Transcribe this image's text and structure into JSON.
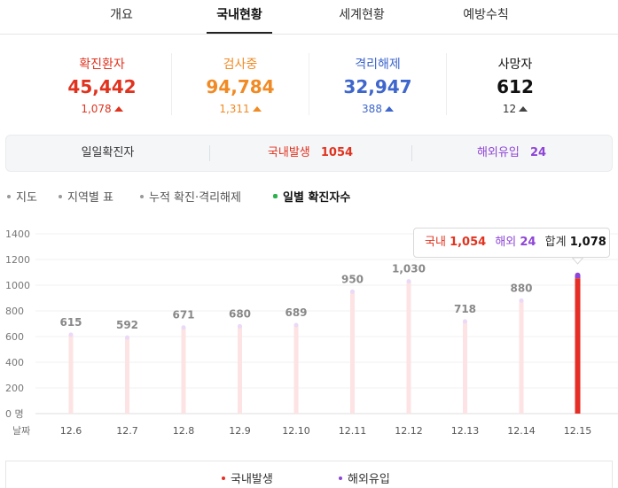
{
  "tabs": [
    "개요",
    "국내현황",
    "세계현황",
    "예방수칙"
  ],
  "active_tab": 1,
  "stats": [
    {
      "label": "확진환자",
      "value": "45,442",
      "delta": "1,078",
      "color": "#e0331f"
    },
    {
      "label": "검사중",
      "value": "94,784",
      "delta": "1,311",
      "color": "#f08a24"
    },
    {
      "label": "격리해제",
      "value": "32,947",
      "delta": "388",
      "color": "#3e66cc"
    },
    {
      "label": "사망자",
      "value": "612",
      "delta": "12",
      "color": "#111111"
    }
  ],
  "daily": {
    "label": "일일확진자",
    "domestic_label": "국내발생",
    "domestic_value": "1054",
    "overseas_label": "해외유입",
    "overseas_value": "24"
  },
  "subnav": [
    "지도",
    "지역별 표",
    "누적 확진·격리해제",
    "일별 확진자수"
  ],
  "tooltip": {
    "domestic_label": "국내",
    "domestic_value": "1,054",
    "overseas_label": "해외",
    "overseas_value": "24",
    "total_label": "합계",
    "total_value": "1,078"
  },
  "chart_data": {
    "type": "bar",
    "xlabel": "날짜",
    "y_ticks": [
      "1400",
      "1200",
      "1000",
      "800",
      "600",
      "400",
      "200",
      "0 명"
    ],
    "ylim": [
      0,
      1400
    ],
    "categories": [
      "12.6",
      "12.7",
      "12.8",
      "12.9",
      "12.10",
      "12.11",
      "12.12",
      "12.13",
      "12.14",
      "12.15"
    ],
    "series": [
      {
        "name": "국내발생",
        "values": [
          615,
          592,
          671,
          680,
          689,
          950,
          1030,
          718,
          880,
          1054
        ]
      },
      {
        "name": "해외유입",
        "values": [
          0,
          0,
          0,
          0,
          0,
          0,
          0,
          0,
          0,
          24
        ]
      }
    ],
    "totals": [
      615,
      592,
      671,
      680,
      689,
      950,
      1030,
      718,
      880,
      1078
    ],
    "value_labels": [
      "615",
      "592",
      "671",
      "680",
      "689",
      "950",
      "1,030",
      "718",
      "880",
      ""
    ],
    "highlight_index": 9,
    "colors": {
      "domestic": "#e52f26",
      "overseas": "#8e44d6",
      "faded": "#fde3e3",
      "faded_top": "#ead9f7"
    }
  },
  "legend": [
    "국내발생",
    "해외유입"
  ]
}
